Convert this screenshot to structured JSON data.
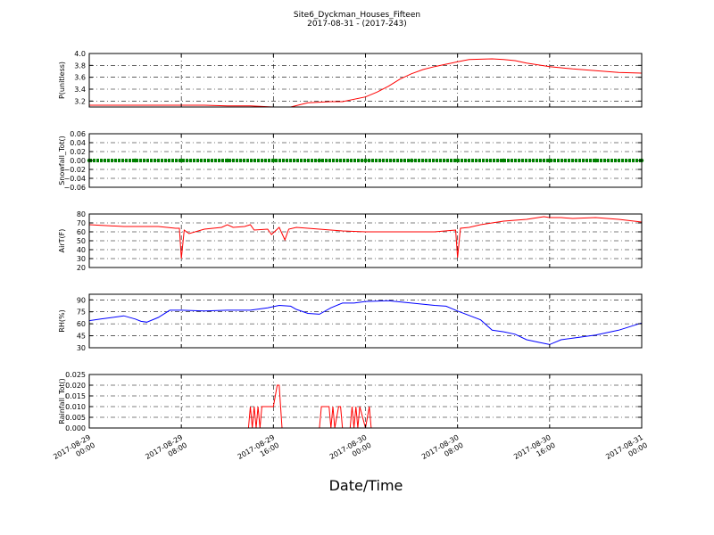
{
  "figure": {
    "title_line1": "Site6_Dyckman_Houses_Fifteen",
    "title_line2": "2017-08-31 - (2017-243)",
    "xlabel": "Date/Time"
  },
  "x_axis": {
    "range": [
      "2017-08-29 00:00",
      "2017-08-31 00:00"
    ],
    "ticks": [
      {
        "value": "2017-08-29 00:00",
        "line1": "2017-08-29",
        "line2": "00:00"
      },
      {
        "value": "2017-08-29 08:00",
        "line1": "2017-08-29",
        "line2": "08:00"
      },
      {
        "value": "2017-08-29 16:00",
        "line1": "2017-08-29",
        "line2": "16:00"
      },
      {
        "value": "2017-08-30 00:00",
        "line1": "2017-08-30",
        "line2": "00:00"
      },
      {
        "value": "2017-08-30 08:00",
        "line1": "2017-08-30",
        "line2": "08:00"
      },
      {
        "value": "2017-08-30 16:00",
        "line1": "2017-08-30",
        "line2": "16:00"
      },
      {
        "value": "2017-08-31 00:00",
        "line1": "2017-08-31",
        "line2": "00:00"
      }
    ]
  },
  "chart_data": [
    {
      "type": "line",
      "ylabel": "P(unitless)",
      "ylim": [
        3.1,
        4.0
      ],
      "yticks": [
        "3.2",
        "3.4",
        "3.6",
        "3.8",
        "4.0"
      ],
      "ytick_values": [
        3.2,
        3.4,
        3.6,
        3.8,
        4.0
      ],
      "grid": true,
      "color": "#ff0000",
      "series": [
        {
          "x": [
            "2017-08-29 00:00",
            "2017-08-29 03:00",
            "2017-08-29 08:00",
            "2017-08-29 10:00",
            "2017-08-29 12:00",
            "2017-08-29 14:00",
            "2017-08-29 16:00",
            "2017-08-29 17:30",
            "2017-08-29 19:00",
            "2017-08-29 21:00",
            "2017-08-29 22:00",
            "2017-08-30 00:00",
            "2017-08-30 01:00",
            "2017-08-30 02:00",
            "2017-08-30 03:00",
            "2017-08-30 04:00",
            "2017-08-30 05:00",
            "2017-08-30 06:00",
            "2017-08-30 07:00",
            "2017-08-30 08:00",
            "2017-08-30 09:00",
            "2017-08-30 11:00",
            "2017-08-30 12:00",
            "2017-08-30 13:00",
            "2017-08-30 14:00",
            "2017-08-30 16:00",
            "2017-08-30 18:00",
            "2017-08-30 20:00",
            "2017-08-30 22:00",
            "2017-08-31 00:00"
          ],
          "y": [
            3.13,
            3.13,
            3.13,
            3.13,
            3.12,
            3.12,
            3.1,
            3.1,
            3.17,
            3.19,
            3.19,
            3.27,
            3.35,
            3.45,
            3.57,
            3.66,
            3.73,
            3.78,
            3.82,
            3.86,
            3.9,
            3.91,
            3.9,
            3.88,
            3.84,
            3.78,
            3.74,
            3.71,
            3.68,
            3.67
          ]
        }
      ]
    },
    {
      "type": "scatter",
      "ylabel": "Snowfall_Tot()",
      "ylim": [
        -0.06,
        0.06
      ],
      "yticks": [
        "−0.06",
        "−0.04",
        "−0.02",
        "0.00",
        "0.02",
        "0.04",
        "0.06"
      ],
      "ytick_values": [
        -0.06,
        -0.04,
        -0.02,
        0.0,
        0.02,
        0.04,
        0.06
      ],
      "grid": true,
      "color": "#008000",
      "series": [
        {
          "x": [
            "2017-08-29 00:00",
            "2017-08-29 04:00",
            "2017-08-29 08:00",
            "2017-08-29 12:00",
            "2017-08-29 16:00",
            "2017-08-29 20:00",
            "2017-08-30 00:00",
            "2017-08-30 04:00",
            "2017-08-30 08:00",
            "2017-08-30 12:00",
            "2017-08-30 16:00",
            "2017-08-30 20:00",
            "2017-08-31 00:00"
          ],
          "y": [
            0,
            0,
            0,
            0,
            0,
            0,
            0,
            0,
            0,
            0,
            0,
            0,
            0
          ]
        }
      ]
    },
    {
      "type": "line",
      "ylabel": "AirT(F)",
      "ylim": [
        20,
        80
      ],
      "yticks": [
        "20",
        "30",
        "40",
        "50",
        "60",
        "70",
        "80"
      ],
      "ytick_values": [
        20,
        30,
        40,
        50,
        60,
        70,
        80
      ],
      "grid": true,
      "color": "#ff0000",
      "series": [
        {
          "x": [
            "2017-08-29 00:00",
            "2017-08-29 03:00",
            "2017-08-29 06:00",
            "2017-08-29 07:30",
            "2017-08-29 07:50",
            "2017-08-29 08:00",
            "2017-08-29 08:15",
            "2017-08-29 08:40",
            "2017-08-29 10:00",
            "2017-08-29 11:30",
            "2017-08-29 12:00",
            "2017-08-29 12:30",
            "2017-08-29 13:30",
            "2017-08-29 14:00",
            "2017-08-29 14:20",
            "2017-08-29 15:30",
            "2017-08-29 15:50",
            "2017-08-29 16:30",
            "2017-08-29 17:00",
            "2017-08-29 17:20",
            "2017-08-29 18:00",
            "2017-08-29 20:00",
            "2017-08-29 22:00",
            "2017-08-30 00:00",
            "2017-08-30 04:00",
            "2017-08-30 06:00",
            "2017-08-30 07:50",
            "2017-08-30 08:00",
            "2017-08-30 08:15",
            "2017-08-30 09:00",
            "2017-08-30 10:00",
            "2017-08-30 11:00",
            "2017-08-30 12:00",
            "2017-08-30 14:00",
            "2017-08-30 15:30",
            "2017-08-30 16:00",
            "2017-08-30 17:00",
            "2017-08-30 18:00",
            "2017-08-30 20:00",
            "2017-08-30 22:00",
            "2017-08-31 00:00"
          ],
          "y": [
            68,
            66,
            66,
            64,
            64,
            30,
            62,
            58,
            63,
            65,
            68,
            65,
            66,
            68,
            62,
            63,
            57,
            65,
            51,
            63,
            65,
            63,
            61,
            60,
            60,
            60,
            62,
            31,
            64,
            65,
            68,
            70,
            72,
            74,
            77,
            76,
            76,
            75,
            76,
            74,
            71
          ]
        }
      ]
    },
    {
      "type": "line",
      "ylabel": "RH(%)",
      "ylim": [
        30,
        97
      ],
      "yticks": [
        "30",
        "45",
        "60",
        "75",
        "90"
      ],
      "ytick_values": [
        30,
        45,
        60,
        75,
        90
      ],
      "grid": true,
      "color": "#0000ff",
      "series": [
        {
          "x": [
            "2017-08-29 00:00",
            "2017-08-29 01:00",
            "2017-08-29 03:00",
            "2017-08-29 04:00",
            "2017-08-29 04:30",
            "2017-08-29 05:00",
            "2017-08-29 06:00",
            "2017-08-29 07:00",
            "2017-08-29 08:00",
            "2017-08-29 10:00",
            "2017-08-29 12:00",
            "2017-08-29 14:00",
            "2017-08-29 15:30",
            "2017-08-29 16:30",
            "2017-08-29 17:30",
            "2017-08-29 18:00",
            "2017-08-29 19:00",
            "2017-08-29 20:00",
            "2017-08-29 21:00",
            "2017-08-29 22:00",
            "2017-08-29 23:00",
            "2017-08-30 00:00",
            "2017-08-30 02:00",
            "2017-08-30 04:00",
            "2017-08-30 06:00",
            "2017-08-30 07:00",
            "2017-08-30 08:00",
            "2017-08-30 10:00",
            "2017-08-30 11:00",
            "2017-08-30 12:00",
            "2017-08-30 13:00",
            "2017-08-30 14:00",
            "2017-08-30 15:00",
            "2017-08-30 16:00",
            "2017-08-30 17:00",
            "2017-08-30 18:00",
            "2017-08-30 20:00",
            "2017-08-30 22:00",
            "2017-08-31 00:00"
          ],
          "y": [
            64,
            66,
            70,
            66,
            63,
            62,
            68,
            77,
            77,
            76,
            77,
            77,
            80,
            83,
            82,
            78,
            73,
            72,
            80,
            86,
            86,
            88,
            89,
            86,
            83,
            82,
            76,
            65,
            52,
            50,
            47,
            40,
            37,
            34,
            40,
            42,
            46,
            52,
            61
          ]
        }
      ]
    },
    {
      "type": "line",
      "ylabel": "Rainfall_Tot()",
      "ylim": [
        0,
        0.025
      ],
      "yticks": [
        "0.000",
        "0.005",
        "0.010",
        "0.015",
        "0.020",
        "0.025"
      ],
      "ytick_values": [
        0,
        0.005,
        0.01,
        0.015,
        0.02,
        0.025
      ],
      "grid": true,
      "color": "#ff0000",
      "series": [
        {
          "x": [
            "2017-08-29 00:00",
            "2017-08-29 13:50",
            "2017-08-29 14:00",
            "2017-08-29 14:10",
            "2017-08-29 14:20",
            "2017-08-29 14:30",
            "2017-08-29 14:40",
            "2017-08-29 14:50",
            "2017-08-29 15:00",
            "2017-08-29 15:20",
            "2017-08-29 16:00",
            "2017-08-29 16:20",
            "2017-08-29 16:30",
            "2017-08-29 16:45",
            "2017-08-29 17:00",
            "2017-08-29 20:00",
            "2017-08-29 20:10",
            "2017-08-29 20:50",
            "2017-08-29 21:00",
            "2017-08-29 21:10",
            "2017-08-29 21:20",
            "2017-08-29 21:40",
            "2017-08-29 21:50",
            "2017-08-29 22:00",
            "2017-08-29 22:40",
            "2017-08-29 22:50",
            "2017-08-29 23:00",
            "2017-08-29 23:10",
            "2017-08-29 23:20",
            "2017-08-29 23:30",
            "2017-08-30 00:00",
            "2017-08-30 00:20",
            "2017-08-30 00:30",
            "2017-08-31 00:00"
          ],
          "y": [
            0,
            0,
            0.01,
            0,
            0.01,
            0,
            0.01,
            0,
            0.01,
            0.01,
            0.01,
            0.02,
            0.02,
            0,
            0,
            0,
            0.01,
            0.01,
            0,
            0.01,
            0,
            0.01,
            0.01,
            0,
            0,
            0.01,
            0,
            0.01,
            0,
            0.01,
            0,
            0.01,
            0,
            0
          ]
        }
      ]
    }
  ]
}
